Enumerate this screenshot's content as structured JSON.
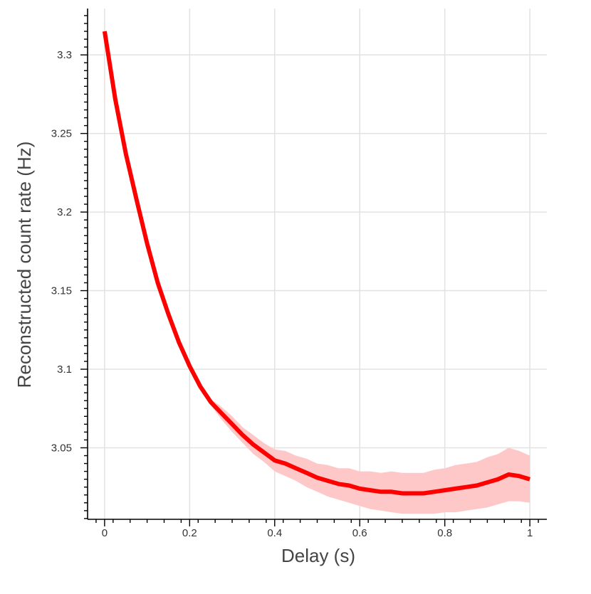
{
  "chart_data": {
    "type": "line",
    "xlabel": "Delay (s)",
    "ylabel": "Reconstructed count rate (Hz)",
    "xlim": [
      -0.04,
      1.04
    ],
    "ylim": [
      3.0045,
      3.3295
    ],
    "xticks": [
      0,
      0.2,
      0.4,
      0.6,
      0.8,
      1
    ],
    "xtick_labels": [
      "0",
      "0.2",
      "0.4",
      "0.6",
      "0.8",
      "1"
    ],
    "yticks": [
      3.05,
      3.1,
      3.15,
      3.2,
      3.25,
      3.3
    ],
    "ytick_labels": [
      "3.05",
      "3.1",
      "3.15",
      "3.2",
      "3.25",
      "3.3"
    ],
    "grid": true,
    "line_color": "#ff0000",
    "band_color": "#ffc8c8",
    "series": [
      {
        "x": [
          0,
          0.025,
          0.05,
          0.075,
          0.1,
          0.125,
          0.15,
          0.175,
          0.2,
          0.225,
          0.25,
          0.275,
          0.3,
          0.325,
          0.35,
          0.375,
          0.4,
          0.425,
          0.45,
          0.475,
          0.5,
          0.525,
          0.55,
          0.575,
          0.6,
          0.625,
          0.65,
          0.675,
          0.7,
          0.725,
          0.75,
          0.775,
          0.8,
          0.825,
          0.85,
          0.875,
          0.9,
          0.925,
          0.95,
          0.975,
          1
        ],
        "y": [
          3.315,
          3.272,
          3.237,
          3.208,
          3.18,
          3.155,
          3.135,
          3.117,
          3.102,
          3.089,
          3.079,
          3.072,
          3.065,
          3.058,
          3.052,
          3.047,
          3.042,
          3.04,
          3.037,
          3.034,
          3.031,
          3.029,
          3.027,
          3.026,
          3.024,
          3.023,
          3.022,
          3.022,
          3.021,
          3.021,
          3.021,
          3.022,
          3.023,
          3.024,
          3.025,
          3.026,
          3.028,
          3.03,
          3.033,
          3.032,
          3.03
        ],
        "lower": [
          3.313,
          3.27,
          3.235,
          3.206,
          3.178,
          3.153,
          3.133,
          3.115,
          3.1,
          3.087,
          3.077,
          3.068,
          3.06,
          3.053,
          3.046,
          3.041,
          3.035,
          3.032,
          3.029,
          3.025,
          3.022,
          3.019,
          3.017,
          3.015,
          3.013,
          3.011,
          3.01,
          3.009,
          3.008,
          3.008,
          3.008,
          3.008,
          3.009,
          3.009,
          3.01,
          3.011,
          3.012,
          3.014,
          3.016,
          3.016,
          3.015
        ],
        "upper": [
          3.317,
          3.274,
          3.239,
          3.21,
          3.182,
          3.157,
          3.137,
          3.119,
          3.104,
          3.091,
          3.081,
          3.076,
          3.07,
          3.063,
          3.058,
          3.053,
          3.049,
          3.048,
          3.045,
          3.043,
          3.04,
          3.039,
          3.037,
          3.037,
          3.035,
          3.035,
          3.034,
          3.035,
          3.034,
          3.034,
          3.034,
          3.036,
          3.037,
          3.039,
          3.04,
          3.041,
          3.044,
          3.046,
          3.05,
          3.048,
          3.045
        ]
      }
    ]
  }
}
